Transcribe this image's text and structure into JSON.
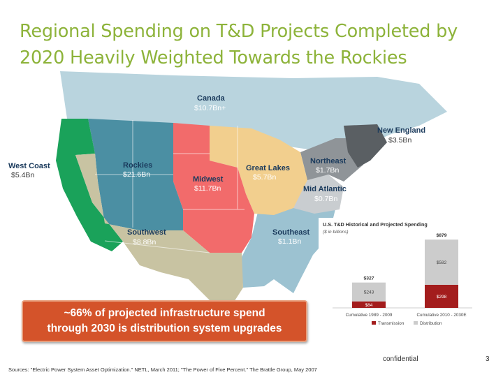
{
  "title": {
    "line1": "Regional Spending on T&D Projects Completed by",
    "line2": "2020 Heavily Weighted Towards the Rockies"
  },
  "regions": [
    {
      "name": "Canada",
      "value": "$10.7Bn+"
    },
    {
      "name": "West Coast",
      "value": "$5.4Bn"
    },
    {
      "name": "Rockies",
      "value": "$21.6Bn"
    },
    {
      "name": "Midwest",
      "value": "$11.7Bn"
    },
    {
      "name": "Great Lakes",
      "value": "$5.7Bn"
    },
    {
      "name": "New England",
      "value": "$3.5Bn"
    },
    {
      "name": "Northeast",
      "value": "$1.7Bn"
    },
    {
      "name": "Mid Atlantic",
      "value": "$0.7Bn"
    },
    {
      "name": "Southwest",
      "value": "$8.8Bn"
    },
    {
      "name": "Southeast",
      "value": "$1.1Bn"
    }
  ],
  "colors": {
    "title": "#8db33a",
    "canada": "#b9d4de",
    "west_coast": "#1aa25a",
    "rockies": "#4b8fa3",
    "midwest": "#f26b6b",
    "great_lakes": "#f2cf8e",
    "northeast": "#8f9498",
    "new_england": "#5a5f63",
    "mid_atlantic": "#c9cdd0",
    "southwest": "#c8c3a2",
    "southeast": "#9cc2d1",
    "transmission": "#a31d1d",
    "distribution": "#cccccc",
    "callout": "#d4532a"
  },
  "chart_data": {
    "type": "bar",
    "title": "U.S. T&D Historical and Projected Spending",
    "subtitle": "($ in billions)",
    "categories": [
      "Cumulative 1989 - 2009",
      "Cumulative 2010 - 2030E"
    ],
    "series": [
      {
        "name": "Transmission",
        "values": [
          84,
          298
        ],
        "labels": [
          "$84",
          "$298"
        ]
      },
      {
        "name": "Distribution",
        "values": [
          243,
          582
        ],
        "labels": [
          "$243",
          "$582"
        ]
      }
    ],
    "totals": [
      327,
      879
    ],
    "total_labels": [
      "$327",
      "$879"
    ],
    "ylim": [
      0,
      900
    ],
    "legend_position": "bottom"
  },
  "callout": {
    "line1": "~66% of projected infrastructure spend",
    "line2": "through 2030 is distribution system upgrades"
  },
  "footer": {
    "confidential": "confidential",
    "page": "3",
    "sources": "Sources: \"Electric Power System Asset Optimization.\" NETL, March 2011; \"The Power of Five Percent.\" The Brattle Group, May 2007"
  }
}
